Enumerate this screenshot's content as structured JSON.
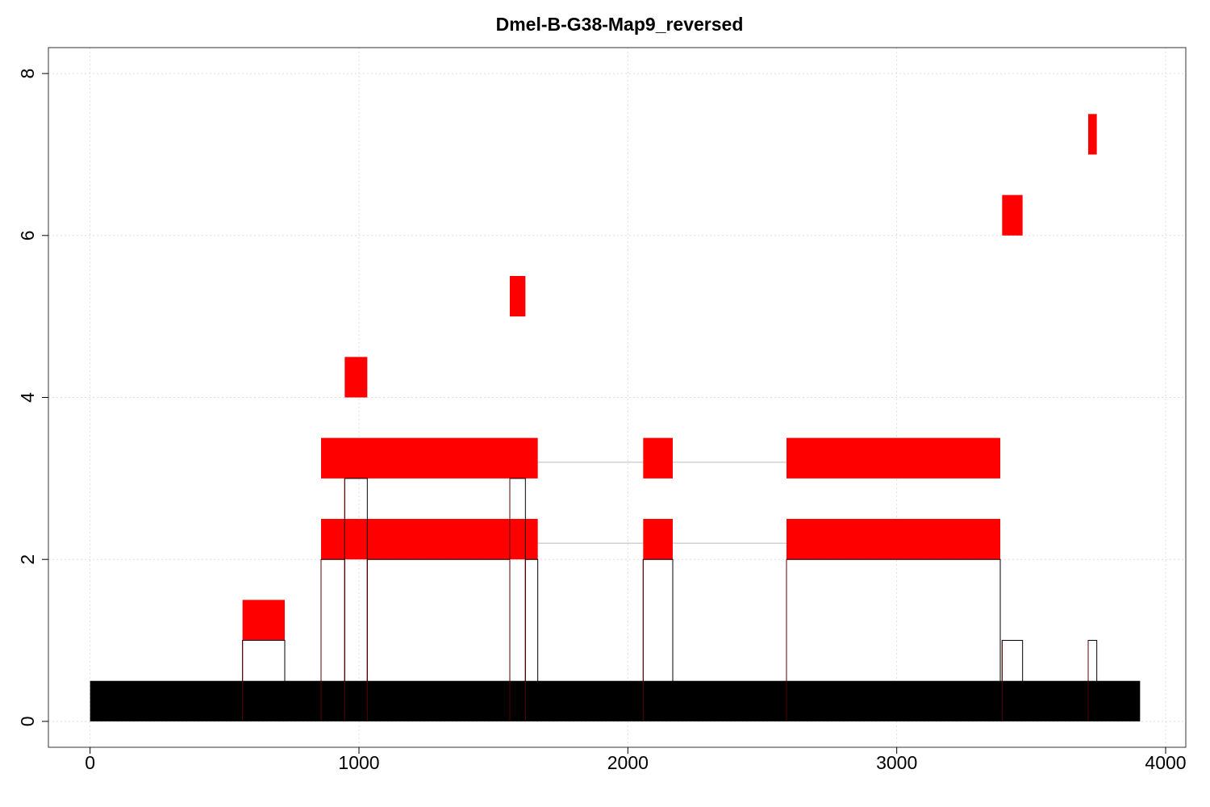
{
  "chart_data": {
    "type": "bar",
    "title": "Dmel-B-G38-Map9_reversed",
    "xlabel": "",
    "ylabel": "",
    "xlim": [
      -155,
      4075
    ],
    "ylim": [
      -0.32,
      8.32
    ],
    "grid": true,
    "x_ticks": [
      0,
      1000,
      2000,
      3000,
      4000
    ],
    "x_tick_labels": [
      "0",
      "1000",
      "2000",
      "3000",
      "4000"
    ],
    "y_ticks": [
      0,
      2,
      4,
      6,
      8
    ],
    "y_tick_labels": [
      "0",
      "2",
      "4",
      "6",
      "8"
    ],
    "colors": {
      "feature": "#ff0000",
      "reference": "#000000",
      "coverage": "#5a0000",
      "connector": "#c8c8c8",
      "grid": "#dddddd"
    },
    "reference_bar": {
      "start": 0,
      "end": 3905,
      "bottom": 0,
      "top": 0.5
    },
    "features": [
      {
        "start": 567,
        "end": 724,
        "bottom": 1,
        "top": 1.5
      },
      {
        "start": 859,
        "end": 1665,
        "bottom": 2,
        "top": 2.5
      },
      {
        "start": 2057,
        "end": 2167,
        "bottom": 2,
        "top": 2.5
      },
      {
        "start": 2590,
        "end": 3385,
        "bottom": 2,
        "top": 2.5
      },
      {
        "start": 859,
        "end": 1665,
        "bottom": 3,
        "top": 3.5
      },
      {
        "start": 2057,
        "end": 2167,
        "bottom": 3,
        "top": 3.5
      },
      {
        "start": 2590,
        "end": 3385,
        "bottom": 3,
        "top": 3.5
      },
      {
        "start": 947,
        "end": 1031,
        "bottom": 4,
        "top": 4.5
      },
      {
        "start": 1561,
        "end": 1619,
        "bottom": 5,
        "top": 5.5
      },
      {
        "start": 3392,
        "end": 3468,
        "bottom": 6,
        "top": 6.5
      },
      {
        "start": 3712,
        "end": 3744,
        "bottom": 7,
        "top": 7.5
      }
    ],
    "connectors": [
      {
        "from": 1665,
        "to": 2057,
        "y": 2.2
      },
      {
        "from": 2167,
        "to": 2590,
        "y": 2.2
      },
      {
        "from": 1665,
        "to": 2057,
        "y": 3.2
      },
      {
        "from": 2167,
        "to": 2590,
        "y": 3.2
      }
    ],
    "coverage": [
      {
        "start": 567,
        "end": 724,
        "value": 1
      },
      {
        "start": 859,
        "end": 947,
        "value": 2
      },
      {
        "start": 947,
        "end": 1031,
        "value": 3
      },
      {
        "start": 1031,
        "end": 1561,
        "value": 2
      },
      {
        "start": 1561,
        "end": 1619,
        "value": 3
      },
      {
        "start": 1619,
        "end": 1665,
        "value": 2
      },
      {
        "start": 2057,
        "end": 2167,
        "value": 2
      },
      {
        "start": 2590,
        "end": 3385,
        "value": 2
      },
      {
        "start": 3392,
        "end": 3468,
        "value": 1
      },
      {
        "start": 3712,
        "end": 3744,
        "value": 1
      }
    ]
  }
}
